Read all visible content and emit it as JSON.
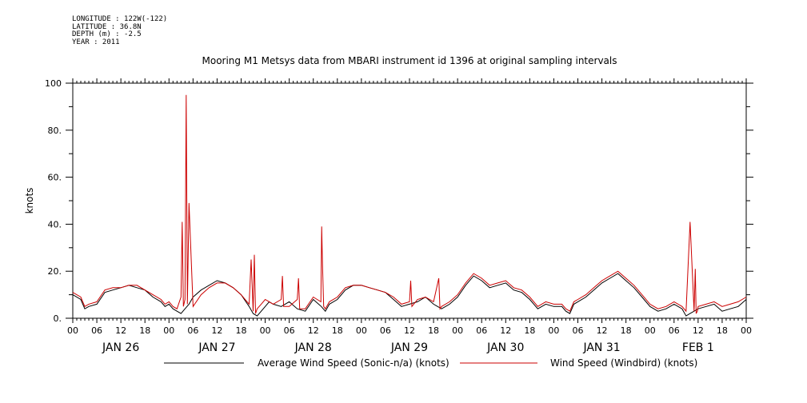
{
  "header": {
    "longitude": "LONGITUDE : 122W(-122)",
    "latitude": "LATITUDE : 36.8N",
    "depth": "DEPTH (m) : -2.5",
    "year": "YEAR : 2011"
  },
  "chart_data": {
    "type": "line",
    "title": "Mooring M1 Metsys data from MBARI instrument id 1396 at original sampling intervals",
    "ylabel": "knots",
    "xlabel": "",
    "ylim": [
      0,
      100
    ],
    "yticks": [
      "0.",
      "20.",
      "40.",
      "60.",
      "80.",
      "100"
    ],
    "xlim_hours": [
      0,
      168
    ],
    "hour_ticks": [
      "00",
      "06",
      "12",
      "18",
      "00",
      "06",
      "12",
      "18",
      "00",
      "06",
      "12",
      "18",
      "00",
      "06",
      "12",
      "18",
      "00",
      "06",
      "12",
      "18",
      "00",
      "06",
      "12",
      "18",
      "00",
      "06",
      "12",
      "18",
      "00"
    ],
    "day_labels": [
      "JAN 26",
      "JAN 27",
      "JAN 28",
      "JAN 29",
      "JAN 30",
      "JAN 31",
      "FEB  1"
    ],
    "grid": false,
    "legend_position": "bottom",
    "series": [
      {
        "name": "Average Wind Speed (Sonic-n/a) (knots)",
        "color": "#000000",
        "x_hours": [
          0,
          2,
          3,
          4,
          6,
          8,
          10,
          12,
          14,
          16,
          18,
          20,
          22,
          23,
          24,
          25,
          26,
          27,
          28,
          29,
          30,
          32,
          34,
          36,
          38,
          40,
          42,
          44,
          45,
          46,
          47,
          48,
          49,
          50,
          52,
          54,
          56,
          58,
          60,
          62,
          63,
          64,
          66,
          68,
          70,
          72,
          74,
          76,
          78,
          80,
          82,
          84,
          86,
          88,
          90,
          92,
          94,
          96,
          98,
          100,
          102,
          104,
          106,
          108,
          110,
          112,
          114,
          116,
          118,
          120,
          122,
          123,
          124,
          125,
          126,
          128,
          130,
          132,
          134,
          136,
          138,
          140,
          142,
          144,
          146,
          148,
          150,
          152,
          153,
          154,
          155,
          156,
          158,
          160,
          162,
          164,
          166,
          168
        ],
        "values": [
          10,
          8,
          4,
          5,
          6,
          11,
          12,
          13,
          14,
          13,
          12,
          9,
          7,
          5,
          6,
          4,
          3,
          2,
          4,
          6,
          9,
          12,
          14,
          16,
          15,
          13,
          10,
          5,
          2,
          1,
          3,
          5,
          7,
          6,
          5,
          7,
          4,
          3,
          8,
          5,
          3,
          6,
          8,
          12,
          14,
          14,
          13,
          12,
          11,
          8,
          5,
          6,
          7,
          9,
          6,
          4,
          6,
          9,
          14,
          18,
          16,
          13,
          14,
          15,
          12,
          11,
          8,
          4,
          6,
          5,
          5,
          3,
          2,
          6,
          7,
          9,
          12,
          15,
          17,
          19,
          16,
          13,
          9,
          5,
          3,
          4,
          6,
          4,
          1,
          2,
          3,
          4,
          5,
          6,
          3,
          4,
          5,
          8
        ]
      },
      {
        "name": "Wind Speed (Windbird) (knots)",
        "color": "#cc0000",
        "x_hours": [
          0,
          2,
          3,
          4,
          6,
          8,
          10,
          12,
          14,
          16,
          18,
          20,
          22,
          23,
          24,
          25,
          26,
          27,
          27.3,
          27.6,
          28,
          28.3,
          28.6,
          29,
          30,
          32,
          34,
          36,
          38,
          40,
          42,
          44,
          44.5,
          45,
          45.3,
          45.6,
          46,
          47,
          48,
          49,
          50,
          52,
          52.3,
          52.6,
          54,
          56,
          56.3,
          56.6,
          58,
          60,
          61.9,
          62.1,
          62.3,
          62.6,
          63,
          64,
          66,
          68,
          70,
          72,
          74,
          76,
          78,
          80,
          82,
          84,
          84.3,
          84.6,
          86,
          88,
          90,
          91.3,
          91.6,
          92,
          94,
          96,
          98,
          100,
          102,
          104,
          106,
          108,
          110,
          112,
          114,
          116,
          118,
          120,
          122,
          123,
          124,
          125,
          126,
          128,
          130,
          132,
          134,
          136,
          138,
          140,
          142,
          144,
          146,
          148,
          150,
          152,
          153,
          154,
          155,
          155.3,
          155.5,
          155.8,
          156,
          158,
          160,
          162,
          164,
          166,
          168
        ],
        "values": [
          11,
          9,
          5,
          6,
          7,
          12,
          13,
          13,
          14,
          14,
          12,
          10,
          8,
          6,
          7,
          5,
          4,
          9,
          41,
          5,
          8,
          95,
          6,
          49,
          5,
          10,
          13,
          15,
          15,
          13,
          10,
          6,
          25,
          3,
          27,
          2,
          4,
          6,
          8,
          7,
          6,
          8,
          18,
          5,
          5,
          8,
          17,
          4,
          4,
          9,
          7,
          39,
          23,
          5,
          4,
          7,
          9,
          13,
          14,
          14,
          13,
          12,
          11,
          9,
          6,
          7,
          16,
          5,
          8,
          9,
          7,
          17,
          4,
          5,
          7,
          10,
          15,
          19,
          17,
          14,
          15,
          16,
          13,
          12,
          9,
          5,
          7,
          6,
          6,
          4,
          3,
          7,
          8,
          10,
          13,
          16,
          18,
          20,
          17,
          14,
          10,
          6,
          4,
          5,
          7,
          5,
          3,
          41,
          3,
          21,
          2,
          3,
          5,
          6,
          7,
          5,
          6,
          7,
          9
        ]
      }
    ]
  }
}
